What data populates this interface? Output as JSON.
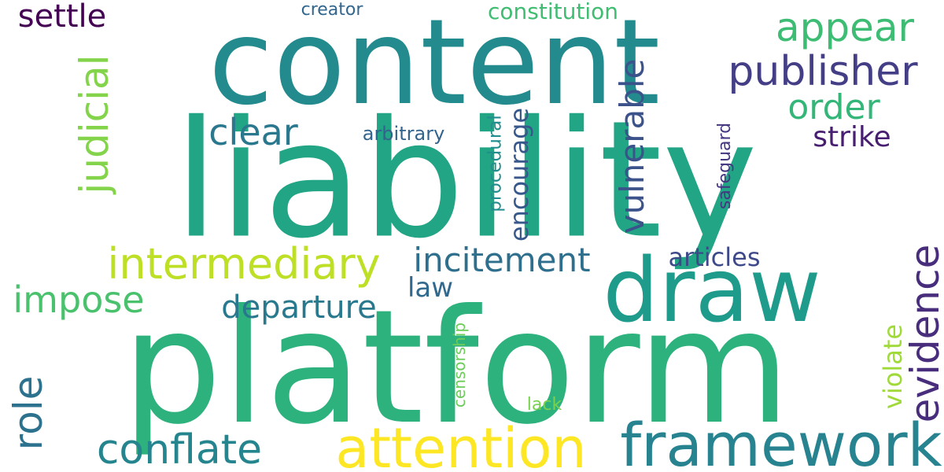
{
  "words": {
    "liability": {
      "text": "liability",
      "color": "#21a585"
    },
    "platform": {
      "text": "platform",
      "color": "#2db27d"
    },
    "content": {
      "text": "content",
      "color": "#238a8d"
    },
    "draw": {
      "text": "draw",
      "color": "#1e9b8a"
    },
    "framework": {
      "text": "framework",
      "color": "#26838f"
    },
    "attention": {
      "text": "attention",
      "color": "#fde725"
    },
    "intermediary": {
      "text": "intermediary",
      "color": "#bddf26"
    },
    "publisher": {
      "text": "publisher",
      "color": "#433e85"
    },
    "appear": {
      "text": "appear",
      "color": "#3dbc74"
    },
    "order": {
      "text": "order",
      "color": "#34b679"
    },
    "judicial": {
      "text": "judicial",
      "color": "#84d44b"
    },
    "conflate": {
      "text": "conflate",
      "color": "#25858e"
    },
    "evidence": {
      "text": "evidence",
      "color": "#472d7b"
    },
    "impose": {
      "text": "impose",
      "color": "#4ac16d"
    },
    "clear": {
      "text": "clear",
      "color": "#2a788e"
    },
    "incitement": {
      "text": "incitement",
      "color": "#2e6f8e"
    },
    "departure": {
      "text": "departure",
      "color": "#29798e"
    },
    "vulnerable": {
      "text": "vulnerable",
      "color": "#3b528b"
    },
    "role": {
      "text": "role",
      "color": "#2c728e"
    },
    "settle": {
      "text": "settle",
      "color": "#440154"
    },
    "strike": {
      "text": "strike",
      "color": "#481f70"
    },
    "encourage": {
      "text": "encourage",
      "color": "#38588c"
    },
    "articles": {
      "text": "articles",
      "color": "#3e4989"
    },
    "violate": {
      "text": "violate",
      "color": "#a0da39"
    },
    "law": {
      "text": "law",
      "color": "#31688e"
    },
    "constitution": {
      "text": "constitution",
      "color": "#40bd72"
    },
    "creator": {
      "text": "creator",
      "color": "#31668e"
    },
    "arbitrary": {
      "text": "arbitrary",
      "color": "#33638d"
    },
    "procedural": {
      "text": "procedural",
      "color": "#228d8d"
    },
    "safeguard": {
      "text": "safeguard",
      "color": "#453781"
    },
    "censorship": {
      "text": "censorship",
      "color": "#6ccd5a"
    },
    "lack": {
      "text": "lack",
      "color": "#7ad151"
    }
  }
}
